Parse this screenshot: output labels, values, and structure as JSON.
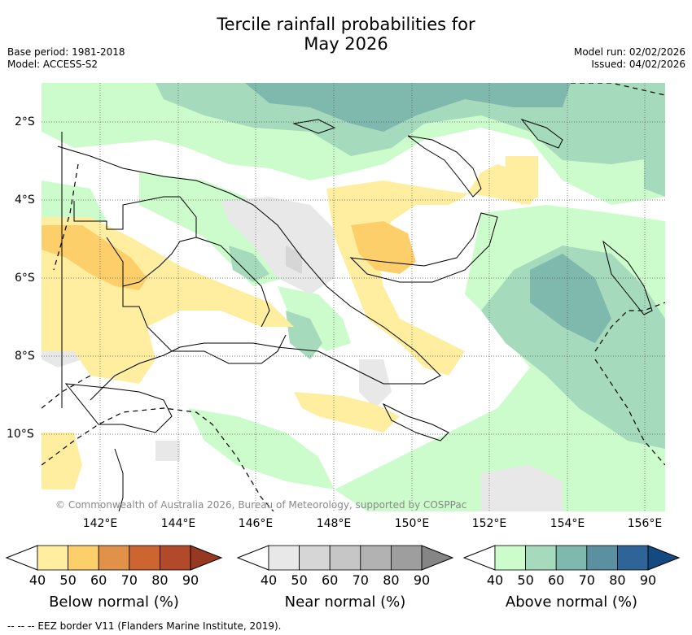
{
  "title_line1": "Tercile rainfall probabilities for",
  "title_line2": "May 2026",
  "base_period": "Base period: 1981-2018",
  "model": "Model: ACCESS-S2",
  "model_run": "Model run: 02/02/2026",
  "issued": "Issued: 04/02/2026",
  "credit": "© Commonwealth of Australia 2026, Bureau of Meteorology, supported by COSPPac",
  "lat_ticks": [
    "2°S",
    "4°S",
    "6°S",
    "8°S",
    "10°S"
  ],
  "lon_ticks": [
    "142°E",
    "144°E",
    "146°E",
    "148°E",
    "150°E",
    "152°E",
    "154°E",
    "156°E"
  ],
  "colorbars": {
    "below": {
      "label": "Below normal (%)",
      "ticks": [
        "40",
        "50",
        "60",
        "70",
        "80",
        "90"
      ],
      "colors": [
        "#ffffff",
        "#ffeda0",
        "#fdcf6a",
        "#e1914a",
        "#cc6530",
        "#b1492a",
        "#973820"
      ]
    },
    "near": {
      "label": "Near normal (%)",
      "ticks": [
        "40",
        "50",
        "60",
        "70",
        "80",
        "90"
      ],
      "colors": [
        "#ffffff",
        "#e8e8e8",
        "#d6d6d6",
        "#c6c6c6",
        "#b2b2b2",
        "#9e9e9e",
        "#858585"
      ]
    },
    "above": {
      "label": "Above normal (%)",
      "ticks": [
        "40",
        "50",
        "60",
        "70",
        "80",
        "90"
      ],
      "colors": [
        "#ffffff",
        "#ccfccc",
        "#a6dabc",
        "#7fb8ac",
        "#5a90a0",
        "#2f6498",
        "#154a80"
      ]
    }
  },
  "footer": "-- -- -- EEZ border V11 (Flanders Marine Institute, 2019)."
}
